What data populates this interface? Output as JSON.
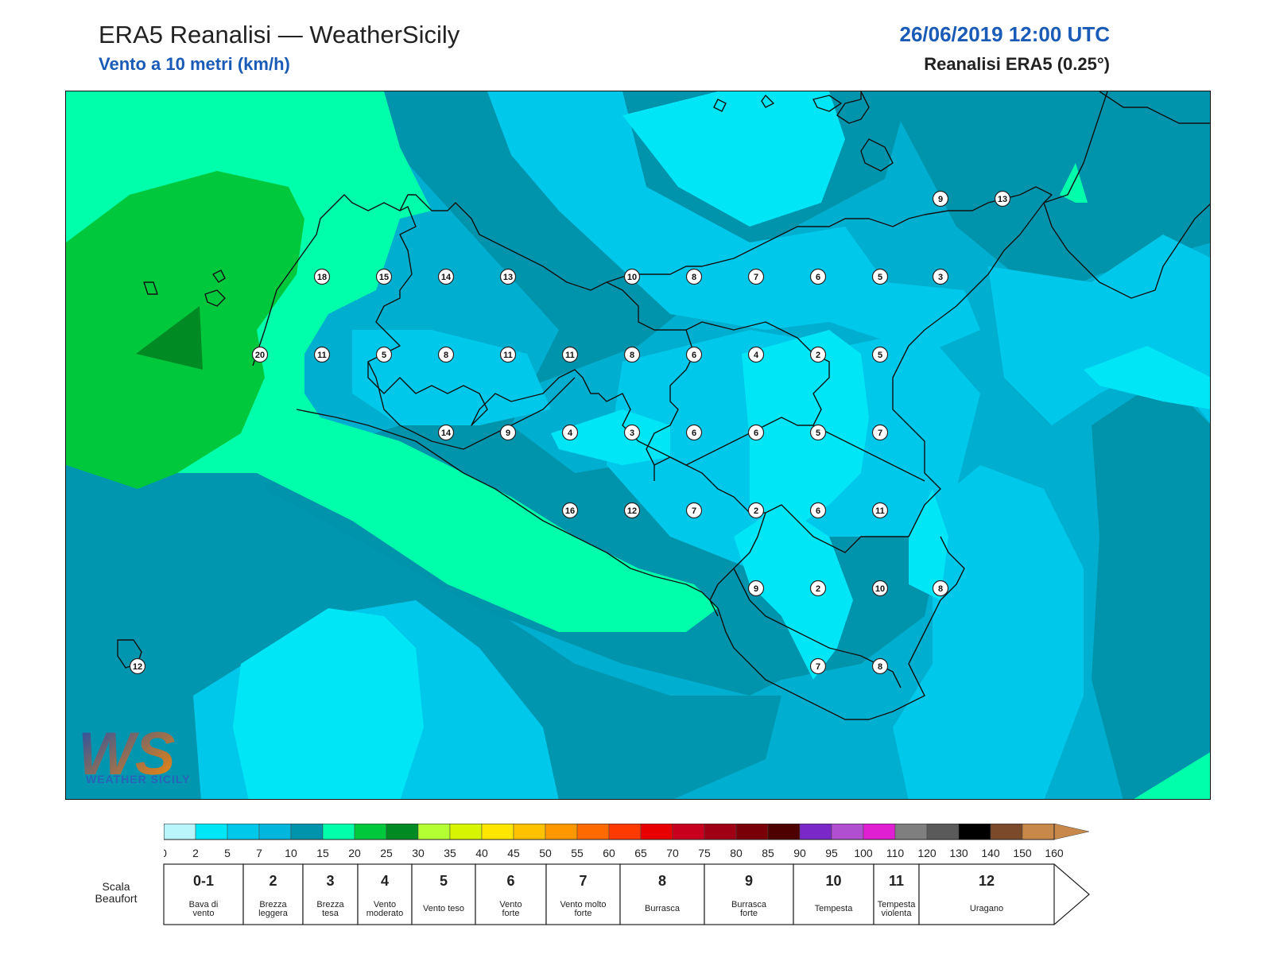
{
  "header": {
    "title": "ERA5 Reanalisi — WeatherSicily",
    "subtitle": "Vento a 10 metri (km/h)",
    "datetime": "26/06/2019 12:00 UTC",
    "model": "Reanalisi ERA5 (0.25°)"
  },
  "logo": {
    "letters": "WS",
    "text": "WEATHER SICILY"
  },
  "map": {
    "field_colors": {
      "very_light": "#00e6f7",
      "light": "#00c8ea",
      "medium": "#00aecf",
      "dark": "#0094ac",
      "aqua_green": "#00ffaa",
      "green": "#00c83c",
      "dark_green": "#008a24"
    },
    "coastline_color": "#111111",
    "wind_points": [
      {
        "value": "9"
      },
      {
        "value": "13"
      },
      {
        "value": "18"
      },
      {
        "value": "15"
      },
      {
        "value": "14"
      },
      {
        "value": "13"
      },
      {
        "value": "10"
      },
      {
        "value": "8"
      },
      {
        "value": "7"
      },
      {
        "value": "6"
      },
      {
        "value": "5"
      },
      {
        "value": "3"
      },
      {
        "value": "20"
      },
      {
        "value": "11"
      },
      {
        "value": "5"
      },
      {
        "value": "8"
      },
      {
        "value": "11"
      },
      {
        "value": "11"
      },
      {
        "value": "8"
      },
      {
        "value": "6"
      },
      {
        "value": "4"
      },
      {
        "value": "2"
      },
      {
        "value": "5"
      },
      {
        "value": "14"
      },
      {
        "value": "9"
      },
      {
        "value": "4"
      },
      {
        "value": "3"
      },
      {
        "value": "6"
      },
      {
        "value": "6"
      },
      {
        "value": "5"
      },
      {
        "value": "7"
      },
      {
        "value": "16"
      },
      {
        "value": "12"
      },
      {
        "value": "7"
      },
      {
        "value": "2"
      },
      {
        "value": "6"
      },
      {
        "value": "11"
      },
      {
        "value": "9"
      },
      {
        "value": "2"
      },
      {
        "value": "10"
      },
      {
        "value": "8"
      },
      {
        "value": "12"
      },
      {
        "value": "7"
      },
      {
        "value": "8"
      }
    ]
  },
  "colorbar": {
    "ticks": [
      "0",
      "2",
      "5",
      "7",
      "10",
      "15",
      "20",
      "25",
      "30",
      "35",
      "40",
      "45",
      "50",
      "55",
      "60",
      "65",
      "70",
      "75",
      "80",
      "85",
      "90",
      "95",
      "100",
      "110",
      "120",
      "130",
      "140",
      "150",
      "160"
    ],
    "colors": [
      "#b9f6fb",
      "#00e6f7",
      "#00c8ea",
      "#00b6dc",
      "#0094ac",
      "#00ffaa",
      "#00c83c",
      "#008a24",
      "#b4ff33",
      "#d8f500",
      "#ffe600",
      "#ffc200",
      "#ff9800",
      "#ff6a00",
      "#ff3a00",
      "#e80000",
      "#c8001e",
      "#a00014",
      "#7a0008",
      "#4e0000",
      "#7a28c8",
      "#b04fd0",
      "#e01ed2",
      "#7f7f7f",
      "#5a5a5a",
      "#000000",
      "#7a4a2a",
      "#c8884a"
    ],
    "arrow_color": "#c8884a"
  },
  "beaufort": {
    "label": "Scala Beaufort",
    "classes": [
      {
        "force": "0-1",
        "desc": [
          "Bava di",
          "vento"
        ]
      },
      {
        "force": "2",
        "desc": [
          "Brezza",
          "leggera"
        ]
      },
      {
        "force": "3",
        "desc": [
          "Brezza",
          "tesa"
        ]
      },
      {
        "force": "4",
        "desc": [
          "Vento",
          "moderato"
        ]
      },
      {
        "force": "5",
        "desc": [
          "Vento teso"
        ]
      },
      {
        "force": "6",
        "desc": [
          "Vento",
          "forte"
        ]
      },
      {
        "force": "7",
        "desc": [
          "Vento molto",
          "forte"
        ]
      },
      {
        "force": "8",
        "desc": [
          "Burrasca"
        ]
      },
      {
        "force": "9",
        "desc": [
          "Burrasca",
          "forte"
        ]
      },
      {
        "force": "10",
        "desc": [
          "Tempesta"
        ]
      },
      {
        "force": "11",
        "desc": [
          "Tempesta",
          "violenta"
        ]
      },
      {
        "force": "12",
        "desc": [
          "Uragano"
        ]
      }
    ]
  }
}
